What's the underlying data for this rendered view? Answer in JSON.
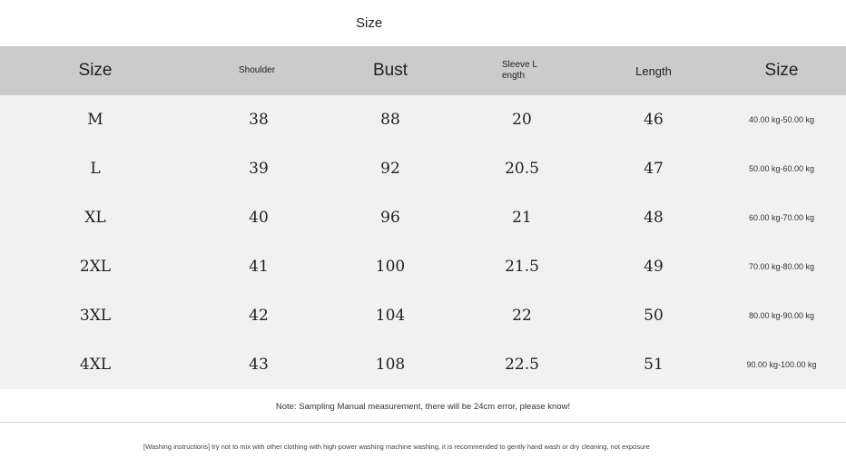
{
  "title": "Size",
  "headers": {
    "size": "Size",
    "shoulder": "Shoulder",
    "bust": "Bust",
    "sleeve": "Sleeve Length",
    "length": "Length",
    "weight": "Size"
  },
  "rows": [
    {
      "size": "M",
      "shoulder": "38",
      "bust": "88",
      "sleeve": "20",
      "length": "46",
      "weight": "40.00 kg-50.00 kg"
    },
    {
      "size": "L",
      "shoulder": "39",
      "bust": "92",
      "sleeve": "20.5",
      "length": "47",
      "weight": "50.00 kg-60.00 kg"
    },
    {
      "size": "XL",
      "shoulder": "40",
      "bust": "96",
      "sleeve": "21",
      "length": "48",
      "weight": "60.00 kg-70.00 kg"
    },
    {
      "size": "2XL",
      "shoulder": "41",
      "bust": "100",
      "sleeve": "21.5",
      "length": "49",
      "weight": "70.00 kg-80.00 kg"
    },
    {
      "size": "3XL",
      "shoulder": "42",
      "bust": "104",
      "sleeve": "22",
      "length": "50",
      "weight": "80.00 kg-90.00 kg"
    },
    {
      "size": "4XL",
      "shoulder": "43",
      "bust": "108",
      "sleeve": "22.5",
      "length": "51",
      "weight": "90.00 kg-100.00 kg"
    }
  ],
  "note": "Note: Sampling Manual measurement, there will be 24cm error, please know!",
  "washing": "[Washing instructions] try not to mix with other clothing with high-power washing machine washing, it is recommended to gently hand wash or dry cleaning, not exposure"
}
